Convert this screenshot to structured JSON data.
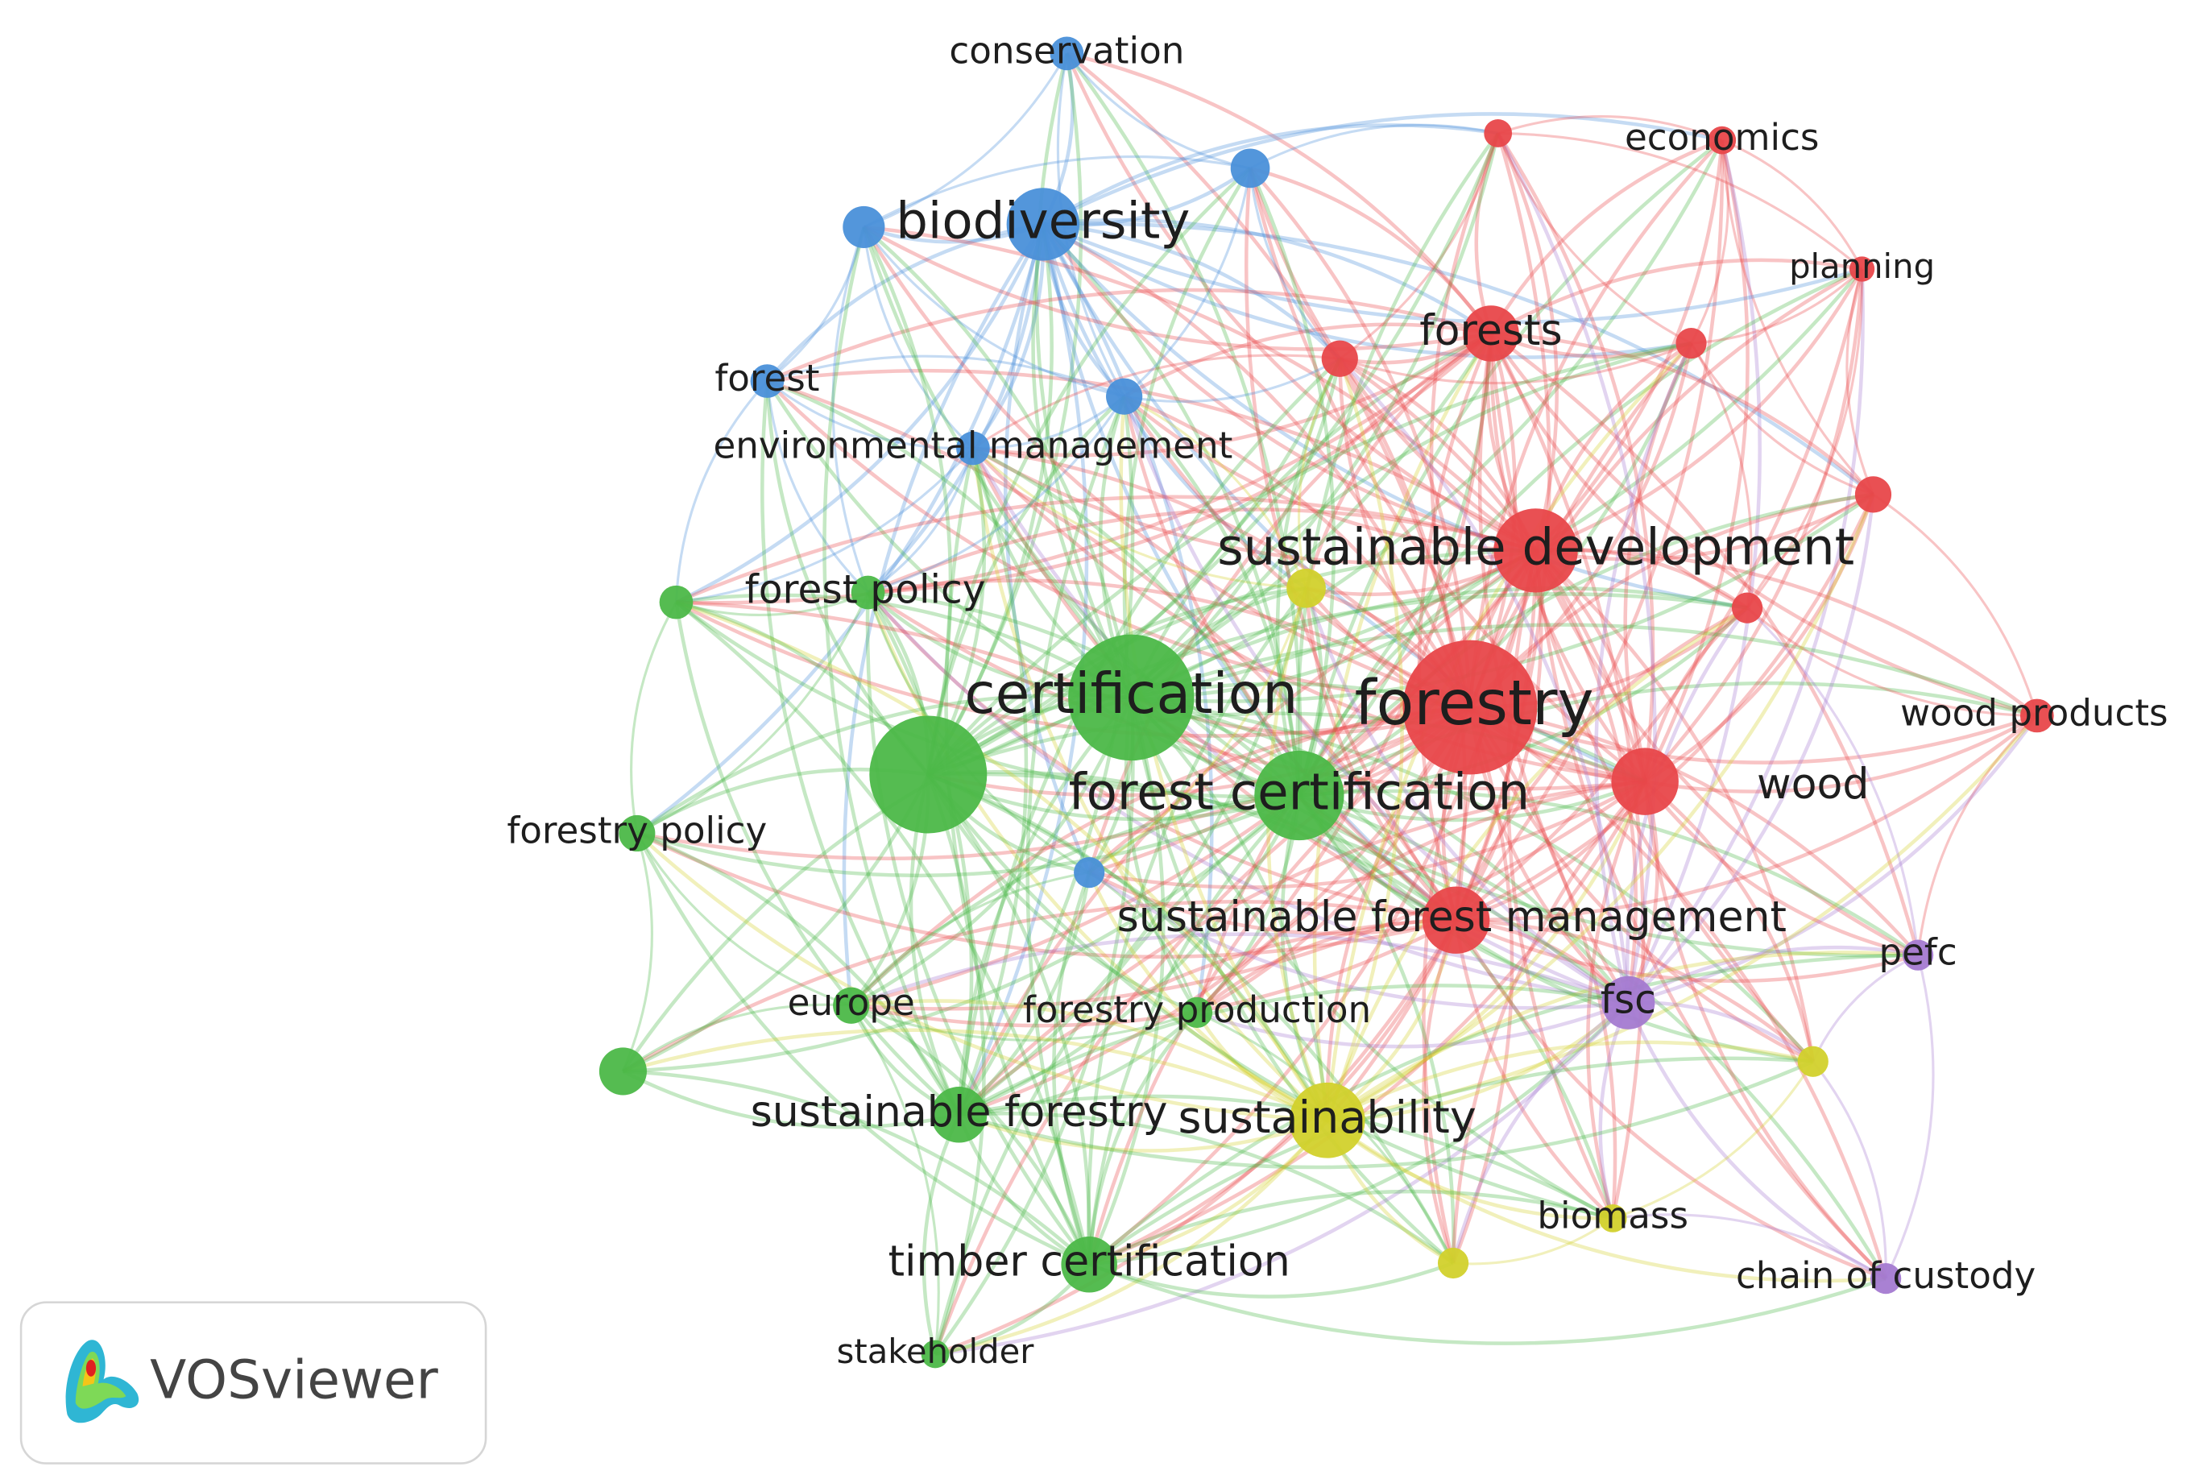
{
  "nodes": [
    {
      "label": "conservation"
    },
    {
      "label": "economics"
    },
    {
      "label": "biodiversity"
    },
    {
      "label": "planning"
    },
    {
      "label": "forests"
    },
    {
      "label": "forest"
    },
    {
      "label": "environmental management"
    },
    {
      "label": "sustainable development"
    },
    {
      "label": "forest policy"
    },
    {
      "label": "certification"
    },
    {
      "label": "forestry"
    },
    {
      "label": "wood products"
    },
    {
      "label": "forest certification"
    },
    {
      "label": "wood"
    },
    {
      "label": "forestry policy"
    },
    {
      "label": "sustainable forest management"
    },
    {
      "label": "pefc"
    },
    {
      "label": "europe"
    },
    {
      "label": "forestry production"
    },
    {
      "label": "fsc"
    },
    {
      "label": "sustainable forestry"
    },
    {
      "label": "sustainability"
    },
    {
      "label": "biomass"
    },
    {
      "label": "timber certification"
    },
    {
      "label": "chain of custody"
    },
    {
      "label": "stakeholder"
    }
  ],
  "logo": {
    "text": "VOSviewer"
  }
}
